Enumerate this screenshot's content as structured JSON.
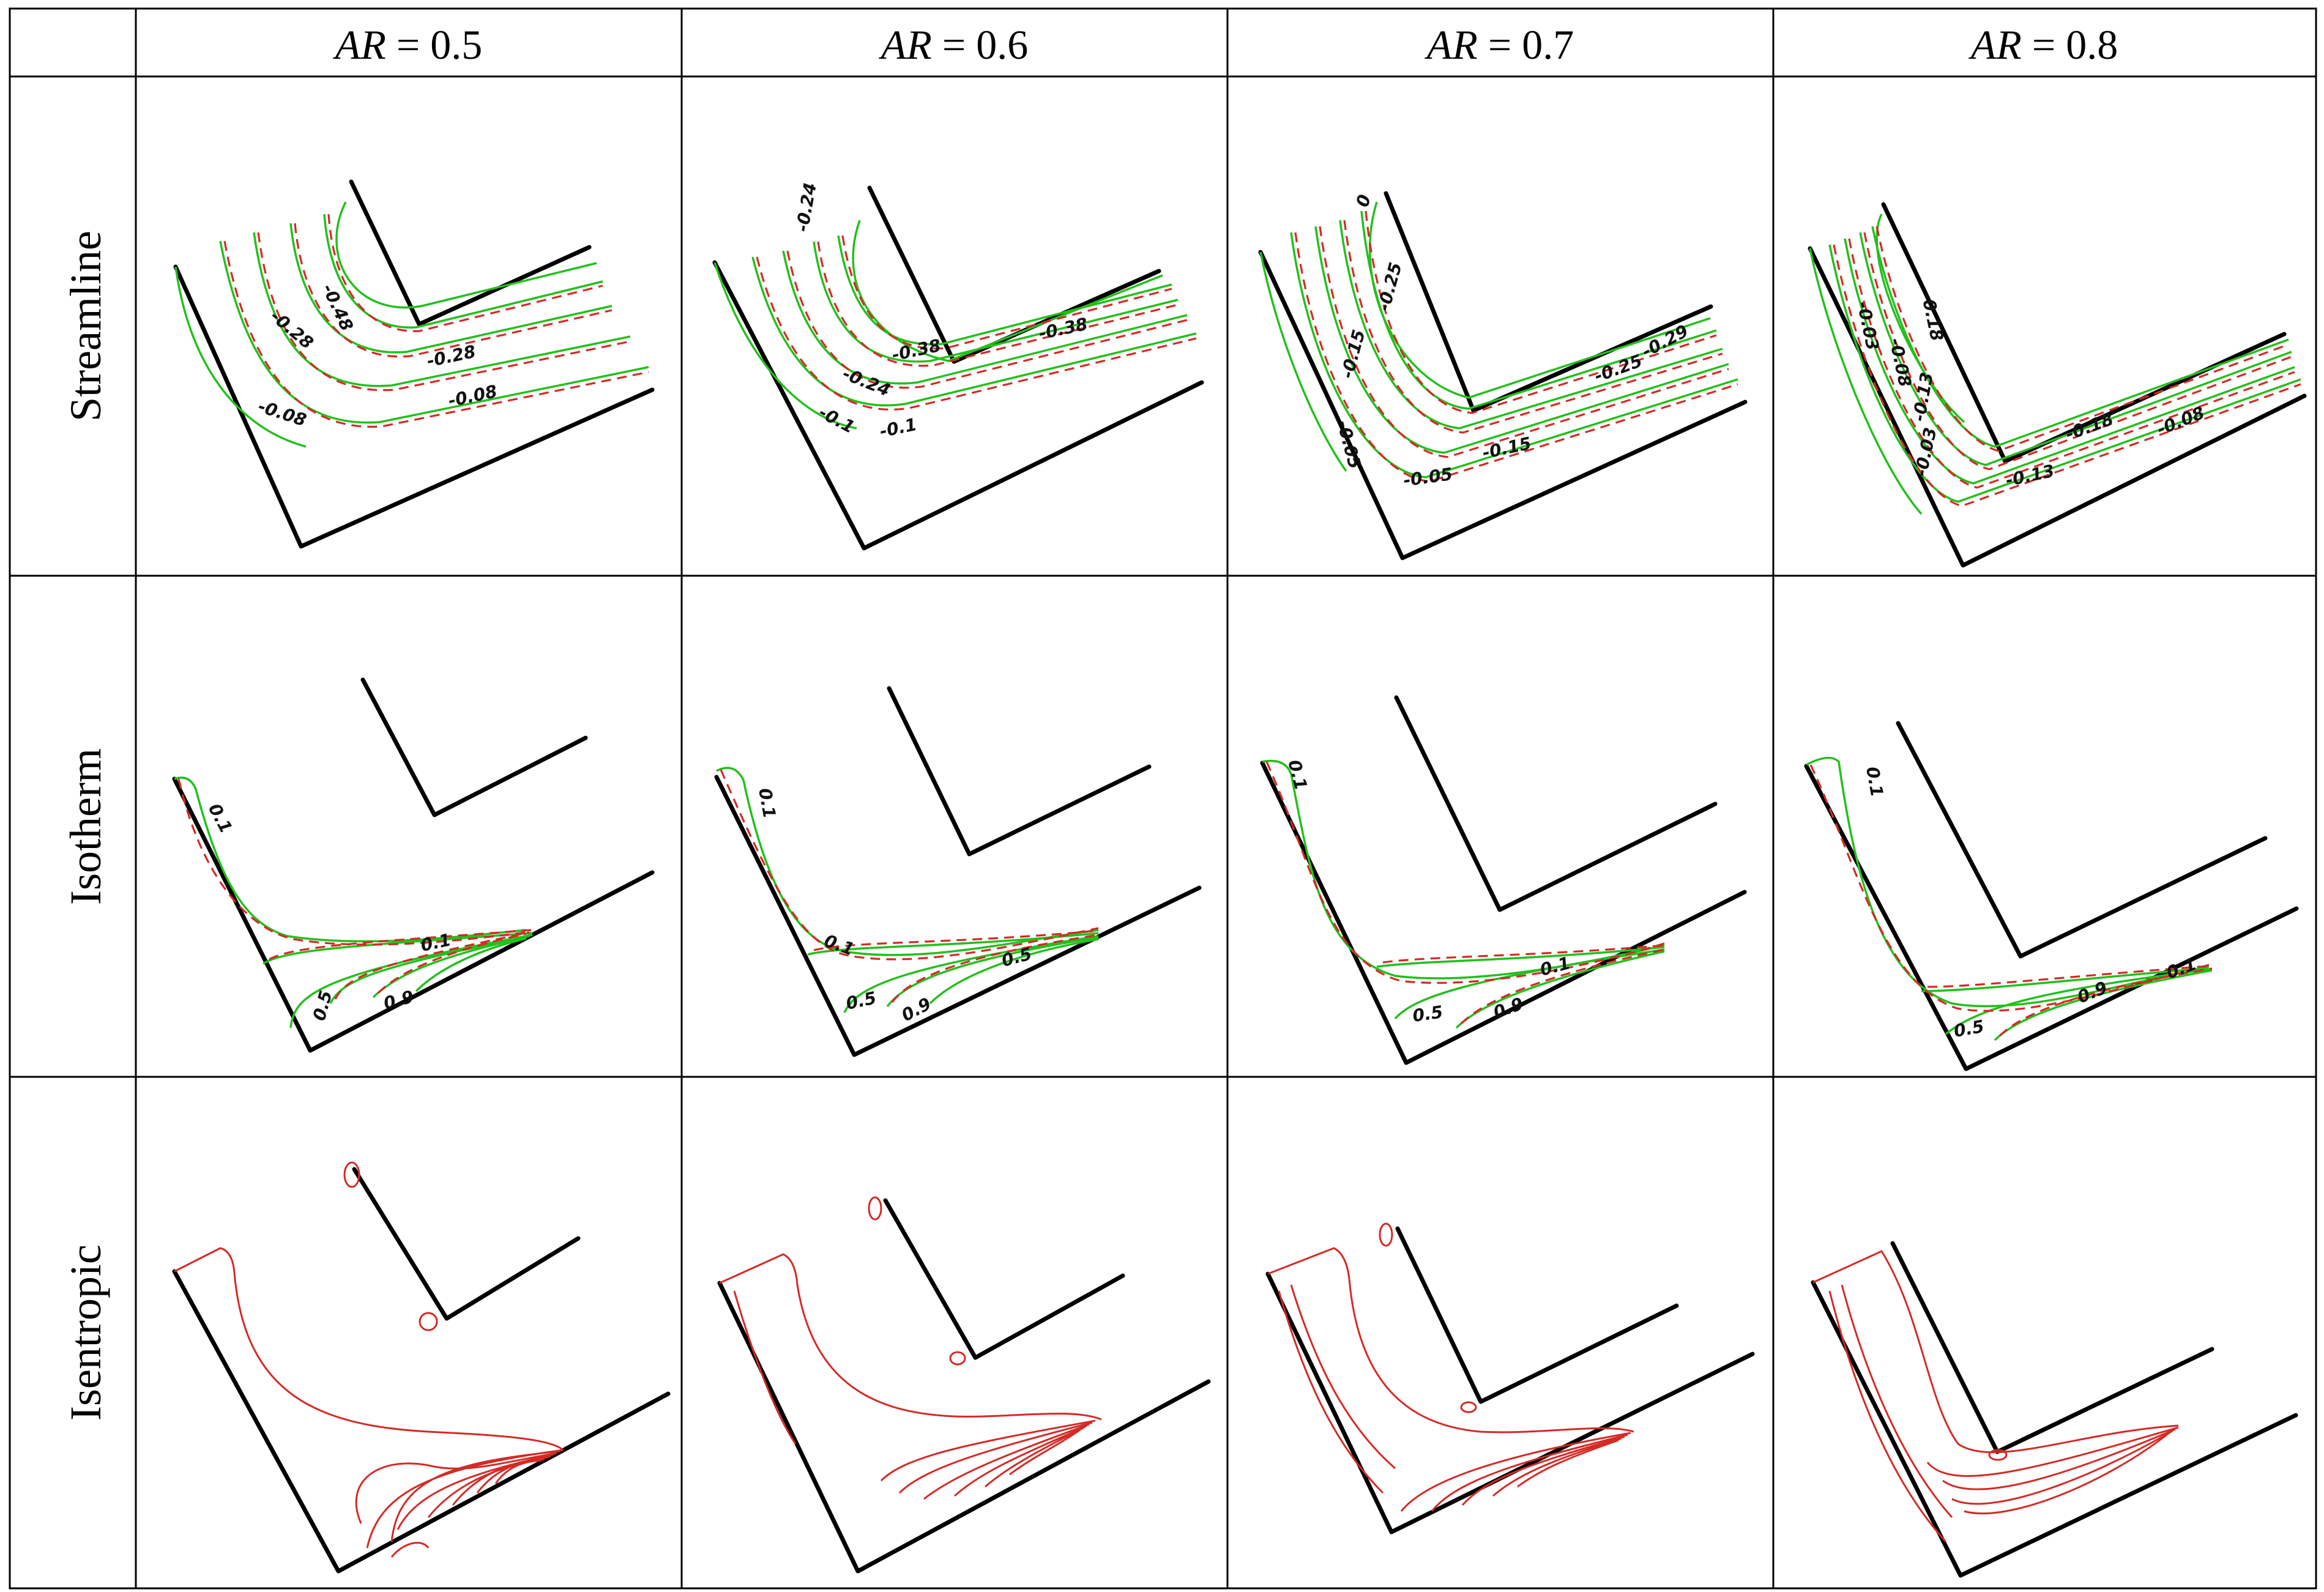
{
  "figure": {
    "corner": "",
    "columns": [
      {
        "var": "AR",
        "eq": " = 0.5"
      },
      {
        "var": "AR",
        "eq": " = 0.6"
      },
      {
        "var": "AR",
        "eq": " = 0.7"
      },
      {
        "var": "AR",
        "eq": " = 0.8"
      }
    ],
    "rows": [
      "Streamline",
      "Isotherm",
      "Isentropic"
    ]
  },
  "panels": {
    "streamline": [
      {
        "labels": [
          "-0.48",
          "-0.28",
          "-0.28",
          "-0.08",
          "-0.08"
        ]
      },
      {
        "labels": [
          "-0.24",
          "-0.38",
          "-0.38",
          "-0.24",
          "-0.1",
          "-0.1"
        ]
      },
      {
        "labels": [
          "0",
          "-0.25",
          "-0.15",
          "-0.29",
          "-0.25",
          "-0.15",
          "-0.05",
          "-0.05"
        ]
      },
      {
        "labels": [
          "-0.18",
          "-0.08",
          "-0.03",
          "-0.13",
          "-0.03",
          "-0.18",
          "-0.13",
          "-0.08"
        ]
      }
    ],
    "isotherm": [
      {
        "labels": [
          "0.1",
          "0.1",
          "0.5",
          "0.9"
        ]
      },
      {
        "labels": [
          "0.1",
          "0.1",
          "0.5",
          "0.5",
          "0.9"
        ]
      },
      {
        "labels": [
          "0.1",
          "0.1",
          "0.5",
          "0.9"
        ]
      },
      {
        "labels": [
          "0.1",
          "0.1",
          "0.5",
          "0.9"
        ]
      }
    ]
  },
  "colors": {
    "numerical": "#22c01c",
    "analytical": "#d42a26",
    "walls": "#000000",
    "grid": "#000000"
  }
}
